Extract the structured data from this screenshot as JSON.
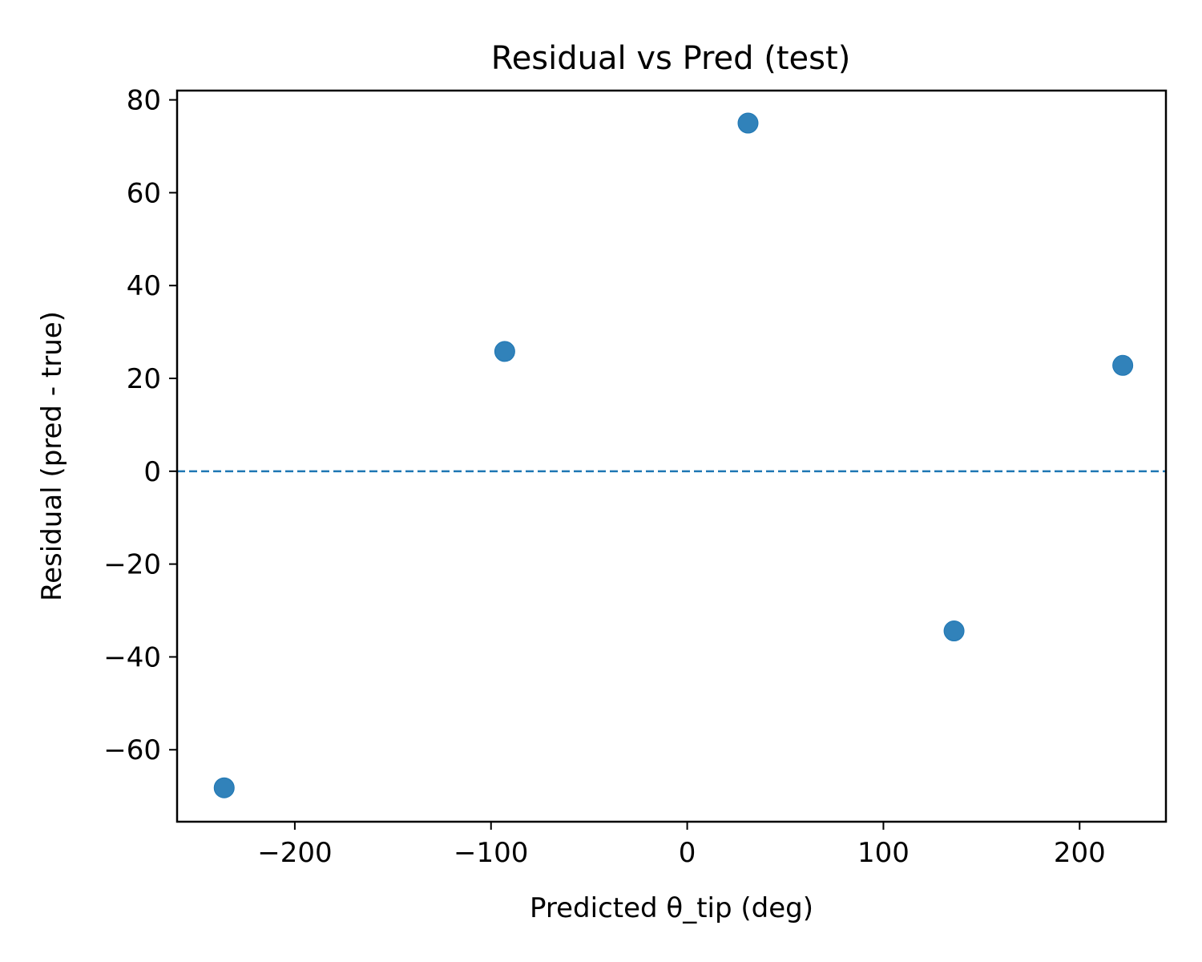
{
  "chart_data": {
    "type": "scatter",
    "title": "Residual vs Pred (test)",
    "xlabel": "Predicted θ_tip (deg)",
    "ylabel": "Residual (pred - true)",
    "xlim": [
      -260,
      244
    ],
    "ylim": [
      -75.5,
      82
    ],
    "xticks": [
      -200,
      -100,
      0,
      100,
      200
    ],
    "xtick_labels": [
      "−200",
      "−100",
      "0",
      "100",
      "200"
    ],
    "yticks": [
      -60,
      -40,
      -20,
      0,
      20,
      40,
      60,
      80
    ],
    "ytick_labels": [
      "−60",
      "−40",
      "−20",
      "0",
      "20",
      "40",
      "60",
      "80"
    ],
    "grid": false,
    "reference_line": {
      "y": 0,
      "style": "dashed"
    },
    "series": [
      {
        "points": [
          {
            "x": -236,
            "y": -68.2
          },
          {
            "x": -93,
            "y": 25.8
          },
          {
            "x": 31,
            "y": 75
          },
          {
            "x": 136,
            "y": -34.4
          },
          {
            "x": 222,
            "y": 22.8
          }
        ]
      }
    ],
    "colors": {
      "points": "#1f77b4",
      "reference_line": "#1f77b4"
    }
  }
}
